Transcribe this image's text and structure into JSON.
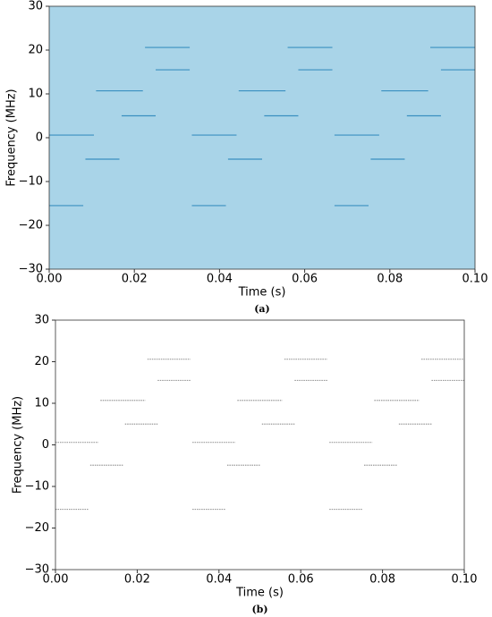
{
  "chart_data": [
    {
      "type": "segments",
      "caption": "(a)",
      "x_label": "Time (s)",
      "y_label": "Frequency (MHz)",
      "background": "#a9d4e8",
      "color": "#3a8fc0",
      "dashed": false,
      "xlim": [
        0,
        0.1
      ],
      "ylim": [
        -30,
        30
      ],
      "xticks": [
        {
          "value": 0,
          "label": "0.00"
        },
        {
          "value": 0.02,
          "label": "0.02"
        },
        {
          "value": 0.04,
          "label": "0.04"
        },
        {
          "value": 0.06,
          "label": "0.06"
        },
        {
          "value": 0.08,
          "label": "0.08"
        },
        {
          "value": 0.1,
          "label": "0.10"
        }
      ],
      "yticks": [
        {
          "value": -30,
          "label": "−30"
        },
        {
          "value": -20,
          "label": "−20"
        },
        {
          "value": -10,
          "label": "−10"
        },
        0,
        10,
        20,
        30
      ],
      "segments": [
        {
          "t": [
            0,
            0.008
          ],
          "frequency": -15.5
        },
        {
          "t": [
            0,
            0.0105
          ],
          "frequency": 0.6
        },
        {
          "t": [
            0.0085,
            0.0165
          ],
          "frequency": -4.9
        },
        {
          "t": [
            0.011,
            0.022
          ],
          "frequency": 10.7
        },
        {
          "t": [
            0.017,
            0.025
          ],
          "frequency": 5.0
        },
        {
          "t": [
            0.0225,
            0.033
          ],
          "frequency": 20.6
        },
        {
          "t": [
            0.025,
            0.033
          ],
          "frequency": 15.5
        },
        {
          "t": [
            0.0335,
            0.0415
          ],
          "frequency": -15.5
        },
        {
          "t": [
            0.0335,
            0.044
          ],
          "frequency": 0.6
        },
        {
          "t": [
            0.042,
            0.05
          ],
          "frequency": -4.9
        },
        {
          "t": [
            0.0445,
            0.0555
          ],
          "frequency": 10.7
        },
        {
          "t": [
            0.0505,
            0.0585
          ],
          "frequency": 5.0
        },
        {
          "t": [
            0.056,
            0.0665
          ],
          "frequency": 20.6
        },
        {
          "t": [
            0.0585,
            0.0665
          ],
          "frequency": 15.5
        },
        {
          "t": [
            0.067,
            0.075
          ],
          "frequency": -15.5
        },
        {
          "t": [
            0.067,
            0.0775
          ],
          "frequency": 0.6
        },
        {
          "t": [
            0.0755,
            0.0835
          ],
          "frequency": -4.9
        },
        {
          "t": [
            0.078,
            0.089
          ],
          "frequency": 10.7
        },
        {
          "t": [
            0.084,
            0.092
          ],
          "frequency": 5.0
        },
        {
          "t": [
            0.0895,
            0.1
          ],
          "frequency": 20.6
        },
        {
          "t": [
            0.092,
            0.1
          ],
          "frequency": 15.5
        }
      ]
    },
    {
      "type": "segments",
      "caption": "(b)",
      "x_label": "Time (s)",
      "y_label": "Frequency (MHz)",
      "background": "#ffffff",
      "color": "#999999",
      "dashed": true,
      "xlim": [
        0,
        0.1
      ],
      "ylim": [
        -30,
        30
      ],
      "xticks": [
        {
          "value": 0,
          "label": "0.00"
        },
        {
          "value": 0.02,
          "label": "0.02"
        },
        {
          "value": 0.04,
          "label": "0.04"
        },
        {
          "value": 0.06,
          "label": "0.06"
        },
        {
          "value": 0.08,
          "label": "0.08"
        },
        {
          "value": 0.1,
          "label": "0.10"
        }
      ],
      "yticks": [
        {
          "value": -30,
          "label": "−30"
        },
        {
          "value": -20,
          "label": "−20"
        },
        {
          "value": -10,
          "label": "−10"
        },
        0,
        10,
        20,
        30
      ],
      "segments": [
        {
          "t": [
            0,
            0.008
          ],
          "frequency": -15.5
        },
        {
          "t": [
            0,
            0.0105
          ],
          "frequency": 0.6
        },
        {
          "t": [
            0.0085,
            0.0165
          ],
          "frequency": -4.9
        },
        {
          "t": [
            0.011,
            0.022
          ],
          "frequency": 10.7
        },
        {
          "t": [
            0.017,
            0.025
          ],
          "frequency": 5.0
        },
        {
          "t": [
            0.0225,
            0.033
          ],
          "frequency": 20.6
        },
        {
          "t": [
            0.025,
            0.033
          ],
          "frequency": 15.5
        },
        {
          "t": [
            0.0335,
            0.0415
          ],
          "frequency": -15.5
        },
        {
          "t": [
            0.0335,
            0.044
          ],
          "frequency": 0.6
        },
        {
          "t": [
            0.042,
            0.05
          ],
          "frequency": -4.9
        },
        {
          "t": [
            0.0445,
            0.0555
          ],
          "frequency": 10.7
        },
        {
          "t": [
            0.0505,
            0.0585
          ],
          "frequency": 5.0
        },
        {
          "t": [
            0.056,
            0.0665
          ],
          "frequency": 20.6
        },
        {
          "t": [
            0.0585,
            0.0665
          ],
          "frequency": 15.5
        },
        {
          "t": [
            0.067,
            0.075
          ],
          "frequency": -15.5
        },
        {
          "t": [
            0.067,
            0.0775
          ],
          "frequency": 0.6
        },
        {
          "t": [
            0.0755,
            0.0835
          ],
          "frequency": -4.9
        },
        {
          "t": [
            0.078,
            0.089
          ],
          "frequency": 10.7
        },
        {
          "t": [
            0.084,
            0.092
          ],
          "frequency": 5.0
        },
        {
          "t": [
            0.0895,
            0.1
          ],
          "frequency": 20.6
        },
        {
          "t": [
            0.092,
            0.1
          ],
          "frequency": 15.5
        }
      ]
    }
  ]
}
